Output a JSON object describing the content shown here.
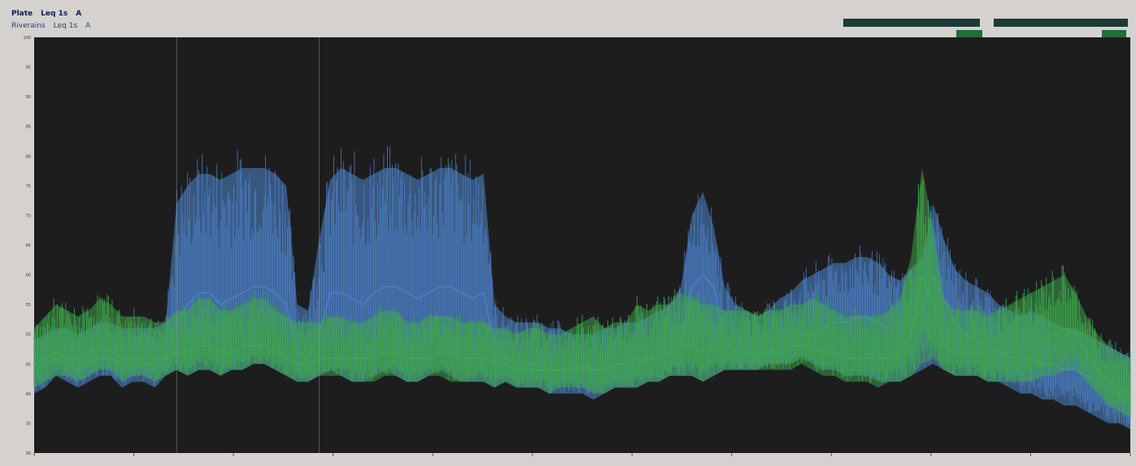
{
  "window": {
    "legend_primary": {
      "name": "Plate",
      "metric": "Leq 1s",
      "weighting": "A"
    },
    "legend_secondary": {
      "name": "Riverains",
      "metric": "Leq 1s",
      "weighting": "A"
    }
  },
  "colors": {
    "plot_background": "#1d1d1e",
    "series_primary": "#3fab4c",
    "series_secondary": "#4f86cf",
    "window_background": "#d4d1cf",
    "legend_primary_text": "#0b1f5c",
    "legend_secondary_text": "#24407e"
  },
  "chart_data": {
    "type": "area",
    "title": "",
    "xlabel": "",
    "ylabel": "",
    "xlim": [
      0,
      100
    ],
    "ylim": [
      30,
      100
    ],
    "grid": false,
    "legend": "top-left",
    "y_ticks": [
      30,
      35,
      40,
      45,
      50,
      55,
      60,
      65,
      70,
      75,
      80,
      85,
      90,
      95,
      100
    ],
    "series": [
      {
        "name": "Riverains",
        "color": "#4f86cf",
        "envelope": true,
        "x": [
          0,
          1,
          2,
          3,
          4,
          5,
          6,
          7,
          8,
          9,
          10,
          11,
          12,
          13,
          14,
          15,
          16,
          17,
          18,
          19,
          20,
          21,
          22,
          23,
          24,
          25,
          26,
          27,
          28,
          29,
          30,
          31,
          32,
          33,
          34,
          35,
          36,
          37,
          38,
          39,
          40,
          41,
          42,
          43,
          44,
          45,
          46,
          47,
          48,
          49,
          50,
          51,
          52,
          53,
          54,
          55,
          56,
          57,
          58,
          59,
          60,
          61,
          62,
          63,
          64,
          65,
          66,
          67,
          68,
          69,
          70,
          71,
          72,
          73,
          74,
          75,
          76,
          77,
          78,
          79,
          80,
          81,
          82,
          83,
          84,
          85,
          86,
          87,
          88,
          89,
          90,
          91,
          92,
          93,
          94,
          95,
          96,
          97,
          98,
          99,
          100
        ],
        "low": [
          40,
          41,
          43,
          42,
          41,
          42,
          43,
          43,
          41,
          42,
          42,
          41,
          43,
          44,
          43,
          44,
          44,
          43,
          44,
          44,
          45,
          45,
          44,
          43,
          42,
          42,
          43,
          44,
          43,
          42,
          42,
          43,
          44,
          43,
          42,
          42,
          43,
          44,
          43,
          42,
          42,
          42,
          41,
          42,
          41,
          41,
          41,
          40,
          40,
          40,
          40,
          39,
          40,
          41,
          41,
          41,
          42,
          42,
          43,
          43,
          43,
          42,
          43,
          44,
          44,
          44,
          44,
          45,
          45,
          45,
          46,
          45,
          44,
          44,
          43,
          43,
          43,
          42,
          42,
          42,
          43,
          44,
          45,
          44,
          43,
          43,
          43,
          42,
          42,
          41,
          40,
          40,
          39,
          39,
          38,
          38,
          37,
          36,
          35,
          35,
          34
        ],
        "mid": [
          44,
          45,
          46,
          45,
          44,
          45,
          46,
          46,
          45,
          45,
          45,
          45,
          46,
          52,
          55,
          57,
          57,
          55,
          56,
          57,
          58,
          58,
          57,
          55,
          47,
          46,
          50,
          57,
          57,
          56,
          55,
          57,
          58,
          58,
          57,
          56,
          57,
          58,
          58,
          57,
          56,
          57,
          48,
          46,
          45,
          45,
          45,
          44,
          44,
          44,
          44,
          44,
          44,
          45,
          45,
          45,
          46,
          46,
          47,
          48,
          58,
          60,
          58,
          49,
          47,
          47,
          46,
          47,
          48,
          49,
          50,
          50,
          51,
          52,
          52,
          53,
          53,
          52,
          51,
          50,
          52,
          54,
          60,
          56,
          52,
          50,
          49,
          48,
          47,
          46,
          46,
          46,
          45,
          45,
          44,
          44,
          43,
          42,
          41,
          40,
          39
        ],
        "high": [
          49,
          50,
          51,
          51,
          50,
          51,
          52,
          52,
          51,
          51,
          51,
          51,
          52,
          72,
          75,
          77,
          77,
          76,
          77,
          78,
          78,
          78,
          77,
          75,
          55,
          54,
          66,
          76,
          78,
          77,
          76,
          77,
          78,
          78,
          77,
          76,
          77,
          78,
          78,
          77,
          76,
          77,
          55,
          53,
          52,
          52,
          52,
          51,
          51,
          50,
          50,
          50,
          51,
          51,
          52,
          52,
          53,
          54,
          55,
          58,
          70,
          74,
          68,
          58,
          55,
          54,
          53,
          54,
          56,
          57,
          59,
          60,
          61,
          62,
          62,
          63,
          63,
          62,
          60,
          59,
          61,
          63,
          72,
          66,
          61,
          59,
          58,
          57,
          55,
          54,
          53,
          54,
          53,
          52,
          51,
          51,
          50,
          49,
          48,
          47,
          46
        ]
      },
      {
        "name": "Plate",
        "color": "#3fab4c",
        "envelope": true,
        "x": [
          0,
          1,
          2,
          3,
          4,
          5,
          6,
          7,
          8,
          9,
          10,
          11,
          12,
          13,
          14,
          15,
          16,
          17,
          18,
          19,
          20,
          21,
          22,
          23,
          24,
          25,
          26,
          27,
          28,
          29,
          30,
          31,
          32,
          33,
          34,
          35,
          36,
          37,
          38,
          39,
          40,
          41,
          42,
          43,
          44,
          45,
          46,
          47,
          48,
          49,
          50,
          51,
          52,
          53,
          54,
          55,
          56,
          57,
          58,
          59,
          60,
          61,
          62,
          63,
          64,
          65,
          66,
          67,
          68,
          69,
          70,
          71,
          72,
          73,
          74,
          75,
          76,
          77,
          78,
          79,
          80,
          81,
          82,
          83,
          84,
          85,
          86,
          87,
          88,
          89,
          90,
          91,
          92,
          93,
          94,
          95,
          96,
          97,
          98,
          99,
          100
        ],
        "low": [
          41,
          42,
          43,
          43,
          42,
          43,
          44,
          44,
          42,
          43,
          43,
          42,
          43,
          44,
          43,
          44,
          44,
          43,
          44,
          44,
          45,
          45,
          44,
          43,
          42,
          42,
          43,
          43,
          43,
          42,
          42,
          42,
          43,
          43,
          42,
          42,
          43,
          43,
          42,
          42,
          42,
          42,
          41,
          42,
          41,
          41,
          41,
          40,
          41,
          41,
          41,
          40,
          40,
          41,
          41,
          41,
          42,
          42,
          43,
          43,
          43,
          42,
          43,
          44,
          44,
          44,
          44,
          44,
          44,
          44,
          45,
          44,
          43,
          43,
          42,
          42,
          42,
          41,
          42,
          42,
          43,
          45,
          46,
          44,
          43,
          43,
          43,
          42,
          42,
          42,
          42,
          42,
          43,
          43,
          44,
          44,
          42,
          40,
          38,
          37,
          36
        ],
        "mid": [
          45,
          46,
          47,
          46,
          46,
          47,
          48,
          47,
          46,
          46,
          46,
          46,
          46,
          47,
          47,
          48,
          48,
          47,
          47,
          48,
          48,
          48,
          47,
          46,
          45,
          45,
          46,
          46,
          46,
          46,
          46,
          46,
          47,
          47,
          46,
          46,
          46,
          47,
          47,
          46,
          46,
          46,
          45,
          45,
          44,
          44,
          44,
          44,
          44,
          44,
          45,
          44,
          44,
          45,
          45,
          46,
          46,
          47,
          47,
          48,
          48,
          47,
          48,
          47,
          47,
          47,
          47,
          47,
          47,
          48,
          48,
          48,
          47,
          47,
          46,
          46,
          46,
          46,
          46,
          47,
          50,
          60,
          55,
          48,
          47,
          47,
          47,
          46,
          46,
          47,
          47,
          48,
          49,
          50,
          51,
          50,
          47,
          44,
          42,
          41,
          40
        ],
        "high": [
          51,
          53,
          55,
          54,
          53,
          54,
          56,
          55,
          53,
          53,
          53,
          52,
          52,
          54,
          54,
          56,
          56,
          54,
          54,
          55,
          56,
          56,
          54,
          53,
          52,
          52,
          52,
          53,
          53,
          52,
          52,
          53,
          54,
          54,
          52,
          52,
          53,
          53,
          53,
          52,
          52,
          52,
          51,
          51,
          50,
          51,
          51,
          50,
          50,
          51,
          52,
          53,
          51,
          52,
          52,
          55,
          54,
          55,
          55,
          57,
          56,
          55,
          55,
          54,
          54,
          54,
          53,
          54,
          54,
          55,
          55,
          56,
          55,
          54,
          53,
          53,
          53,
          53,
          54,
          56,
          63,
          78,
          68,
          56,
          54,
          54,
          54,
          53,
          54,
          55,
          56,
          57,
          58,
          59,
          60,
          57,
          53,
          50,
          48,
          47,
          46
        ]
      }
    ]
  }
}
